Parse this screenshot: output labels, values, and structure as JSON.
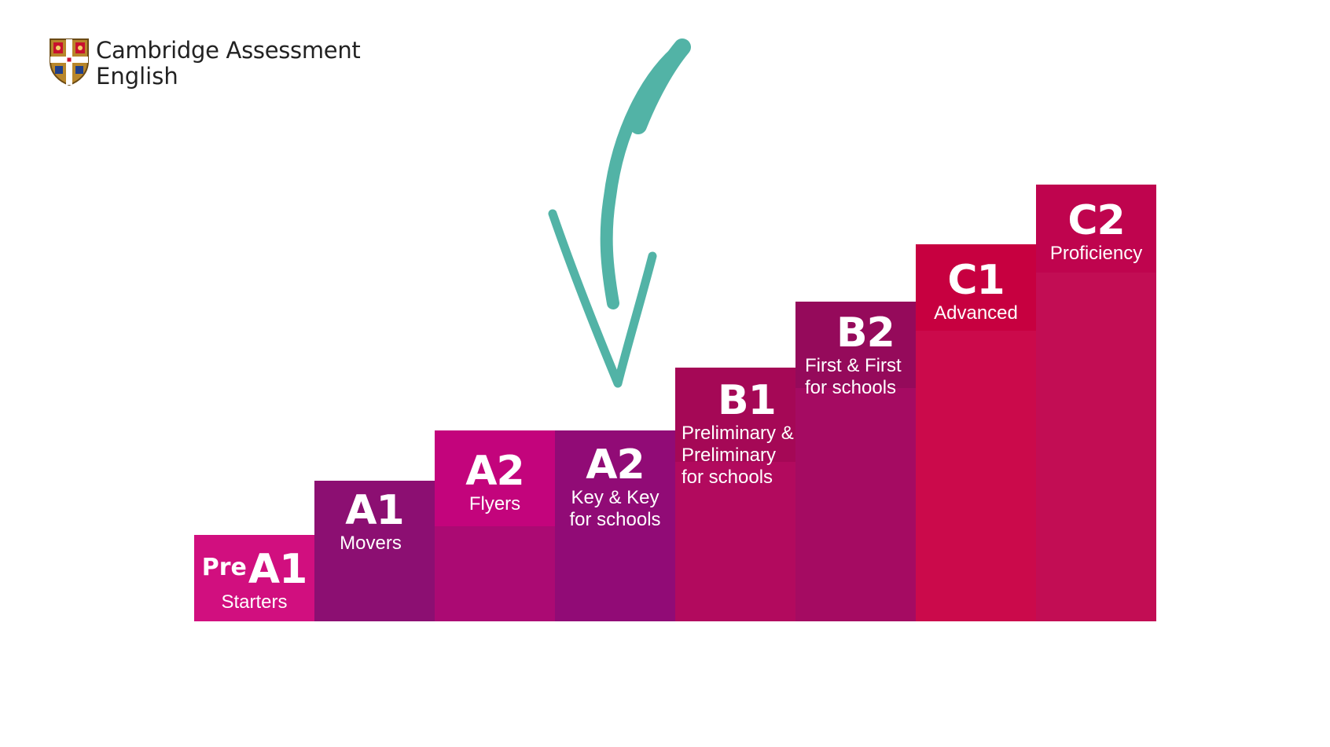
{
  "logo": {
    "line1": "Cambridge Assessment",
    "line2": "English",
    "icon": "cambridge-shield-icon"
  },
  "arrow": {
    "icon": "hand-drawn-down-arrow-icon",
    "color": "#52b3a6"
  },
  "steps": [
    {
      "pre": "Pre",
      "level": "A1",
      "exam": "Starters",
      "color": "#d10f7f"
    },
    {
      "level": "A1",
      "exam": "Movers",
      "color": "#8c0f72"
    },
    {
      "level": "A2",
      "exam": "Flyers",
      "color": "#c3047c"
    },
    {
      "level": "A2",
      "exam_line1": "Key & Key",
      "exam_line2": "for schools",
      "color": "#910b76"
    },
    {
      "level": "B1",
      "exam_line1": "Preliminary &",
      "exam_line2": "Preliminary",
      "exam_line3": "for schools",
      "color": "#a50856"
    },
    {
      "level": "B2",
      "exam_line1": "First & First",
      "exam_line2": "for schools",
      "color": "#950a5b"
    },
    {
      "level": "C1",
      "exam": "Advanced",
      "color": "#c70040"
    },
    {
      "level": "C2",
      "exam": "Proficiency",
      "color": "#bf044e"
    }
  ]
}
